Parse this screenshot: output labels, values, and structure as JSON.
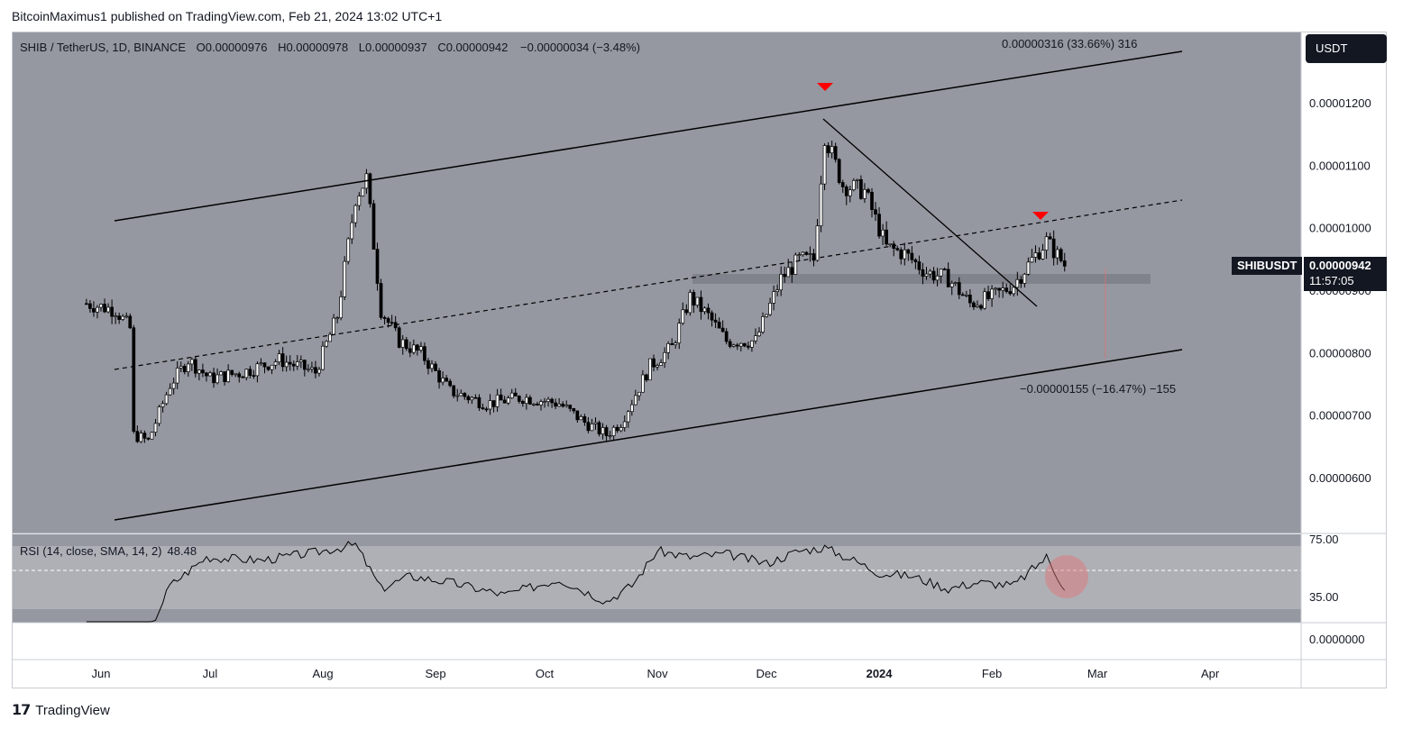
{
  "header": {
    "publisher": "BitcoinMaximus1 published on TradingView.com, Feb 21, 2024 13:02 UTC+1"
  },
  "symbol": {
    "title": "SHIB / TetherUS, 1D, BINANCE",
    "open_label": "O",
    "open": "0.00000976",
    "high_label": "H",
    "high": "0.00000978",
    "low_label": "L",
    "low": "0.00000937",
    "close_label": "C",
    "close": "0.00000942",
    "change": "−0.00000034 (−3.48%)"
  },
  "currency_button": "USDT",
  "price_tag": {
    "ticker": "SHIBUSDT",
    "price": "0.00000942",
    "countdown": "11:57:05"
  },
  "measurements": {
    "upper": "0.00000316 (33.66%) 316",
    "lower": "−0.00000155 (−16.47%) −155"
  },
  "rsi": {
    "legend": "RSI (14, close, SMA, 14, 2)",
    "value": "48.48",
    "upper": "75.00",
    "lower": "35.00",
    "zero": "0.0000000"
  },
  "footer": {
    "brand_logo": "𝟭𝟳",
    "brand": "TradingView"
  },
  "colors": {
    "background": "#9598a1",
    "candle": "#000000",
    "marker": "#ff0000",
    "grey_zone": "#7c7f87",
    "rsi_band": "#aeb0b6"
  },
  "chart_data": [
    {
      "type": "candlestick",
      "title": "SHIB / TetherUS, 1D, BINANCE",
      "x": [
        "Jun",
        "Jul",
        "Aug",
        "Sep",
        "Oct",
        "Nov",
        "Dec",
        "2024",
        "Feb",
        "Mar",
        "Apr"
      ],
      "y_ticks": [
        "0.00001200",
        "0.00001100",
        "0.00001000",
        "0.00000900",
        "0.00000800",
        "0.00000700",
        "0.00000600"
      ],
      "ylim": [
        5.6e-06,
        1.29e-05
      ],
      "close_series": {
        "dates": [
          "2023-05-28",
          "2023-06-05",
          "2023-06-09",
          "2023-06-10",
          "2023-06-14",
          "2023-06-20",
          "2023-06-25",
          "2023-07-01",
          "2023-07-10",
          "2023-07-20",
          "2023-07-30",
          "2023-08-05",
          "2023-08-10",
          "2023-08-13",
          "2023-08-17",
          "2023-08-22",
          "2023-08-28",
          "2023-09-05",
          "2023-09-15",
          "2023-09-25",
          "2023-10-05",
          "2023-10-12",
          "2023-10-18",
          "2023-10-22",
          "2023-10-30",
          "2023-11-05",
          "2023-11-10",
          "2023-11-15",
          "2023-11-20",
          "2023-11-28",
          "2023-12-05",
          "2023-12-10",
          "2023-12-14",
          "2023-12-17",
          "2023-12-22",
          "2023-12-28",
          "2024-01-03",
          "2024-01-08",
          "2024-01-14",
          "2024-01-20",
          "2024-01-26",
          "2024-02-01",
          "2024-02-07",
          "2024-02-12",
          "2024-02-16",
          "2024-02-21"
        ],
        "values": [
          8.8e-06,
          8.7e-06,
          8.4e-06,
          6.7e-06,
          6.6e-06,
          7.5e-06,
          7.9e-06,
          7.6e-06,
          7.7e-06,
          7.9e-06,
          7.7e-06,
          8.6e-06,
          1.05e-05,
          1.08e-05,
          8.7e-06,
          8.2e-06,
          8e-06,
          7.4e-06,
          7.2e-06,
          7.3e-06,
          7.2e-06,
          6.9e-06,
          6.7e-06,
          6.9e-06,
          7.8e-06,
          8.1e-06,
          8.9e-06,
          8.6e-06,
          8.2e-06,
          8.2e-06,
          9.2e-06,
          9.5e-06,
          9.5e-06,
          1.15e-05,
          1.07e-05,
          1.06e-05,
          9.7e-06,
          9.6e-06,
          9.3e-06,
          9.2e-06,
          8.8e-06,
          8.9e-06,
          9.1e-06,
          9.5e-06,
          9.8e-06,
          9.42e-06
        ]
      },
      "last_price": 9.42e-06
    },
    {
      "type": "line",
      "title": "RSI (14, close, SMA, 14, 2)",
      "ylim": [
        20,
        80
      ],
      "reference_lines": [
        75,
        35
      ],
      "series": [
        {
          "dates": [
            "2023-05-28",
            "2023-06-09",
            "2023-06-14",
            "2023-06-20",
            "2023-06-30",
            "2023-07-15",
            "2023-07-30",
            "2023-08-10",
            "2023-08-17",
            "2023-08-25",
            "2023-09-05",
            "2023-09-20",
            "2023-10-05",
            "2023-10-18",
            "2023-10-25",
            "2023-11-01",
            "2023-11-10",
            "2023-11-20",
            "2023-12-01",
            "2023-12-10",
            "2023-12-17",
            "2023-12-25",
            "2024-01-01",
            "2024-01-10",
            "2024-01-20",
            "2024-01-28",
            "2024-02-07",
            "2024-02-13",
            "2024-02-16",
            "2024-02-21"
          ],
          "values": [
            22,
            24,
            20,
            50,
            68,
            66,
            71,
            76,
            48,
            56,
            52,
            44,
            54,
            40,
            50,
            72,
            68,
            70,
            64,
            72,
            74,
            66,
            58,
            56,
            48,
            52,
            50,
            62,
            68,
            48.48
          ]
        }
      ]
    }
  ]
}
